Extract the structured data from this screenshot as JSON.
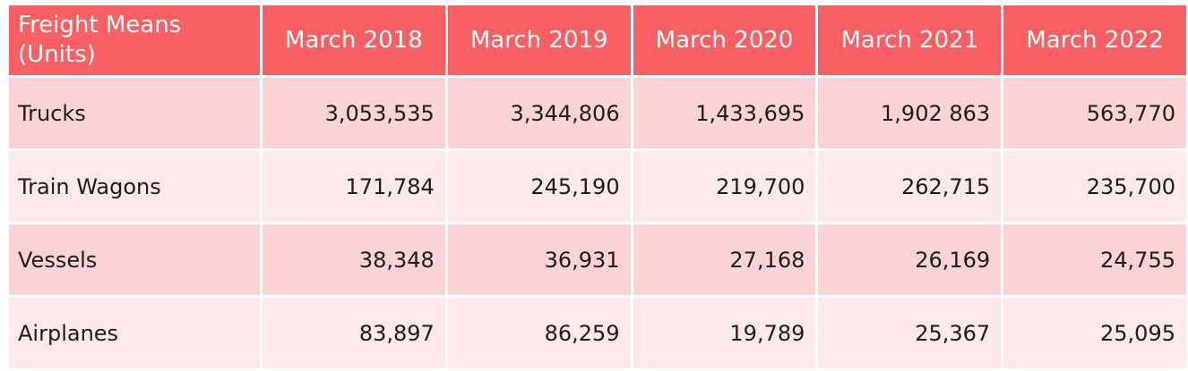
{
  "table": {
    "header_first": "Freight Means (Units)",
    "columns": [
      "March 2018",
      "March 2019",
      "March 2020",
      "March 2021",
      "March 2022"
    ],
    "rows": [
      {
        "label": "Trucks",
        "values": [
          "3,053,535",
          "3,344,806",
          "1,433,695",
          "1,902 863",
          "563,770"
        ]
      },
      {
        "label": "Train Wagons",
        "values": [
          "171,784",
          "245,190",
          "219,700",
          "262,715",
          "235,700"
        ]
      },
      {
        "label": "Vessels",
        "values": [
          "38,348",
          "36,931",
          "27,168",
          "26,169",
          "24,755"
        ]
      },
      {
        "label": "Airplanes",
        "values": [
          "83,897",
          "86,259",
          "19,789",
          "25,367",
          "25,095"
        ]
      }
    ]
  },
  "colors": {
    "header_bg": "#f95f63",
    "row_odd_bg": "#fcd3d4",
    "row_even_bg": "#fde9ea",
    "border": "#ffffff"
  }
}
